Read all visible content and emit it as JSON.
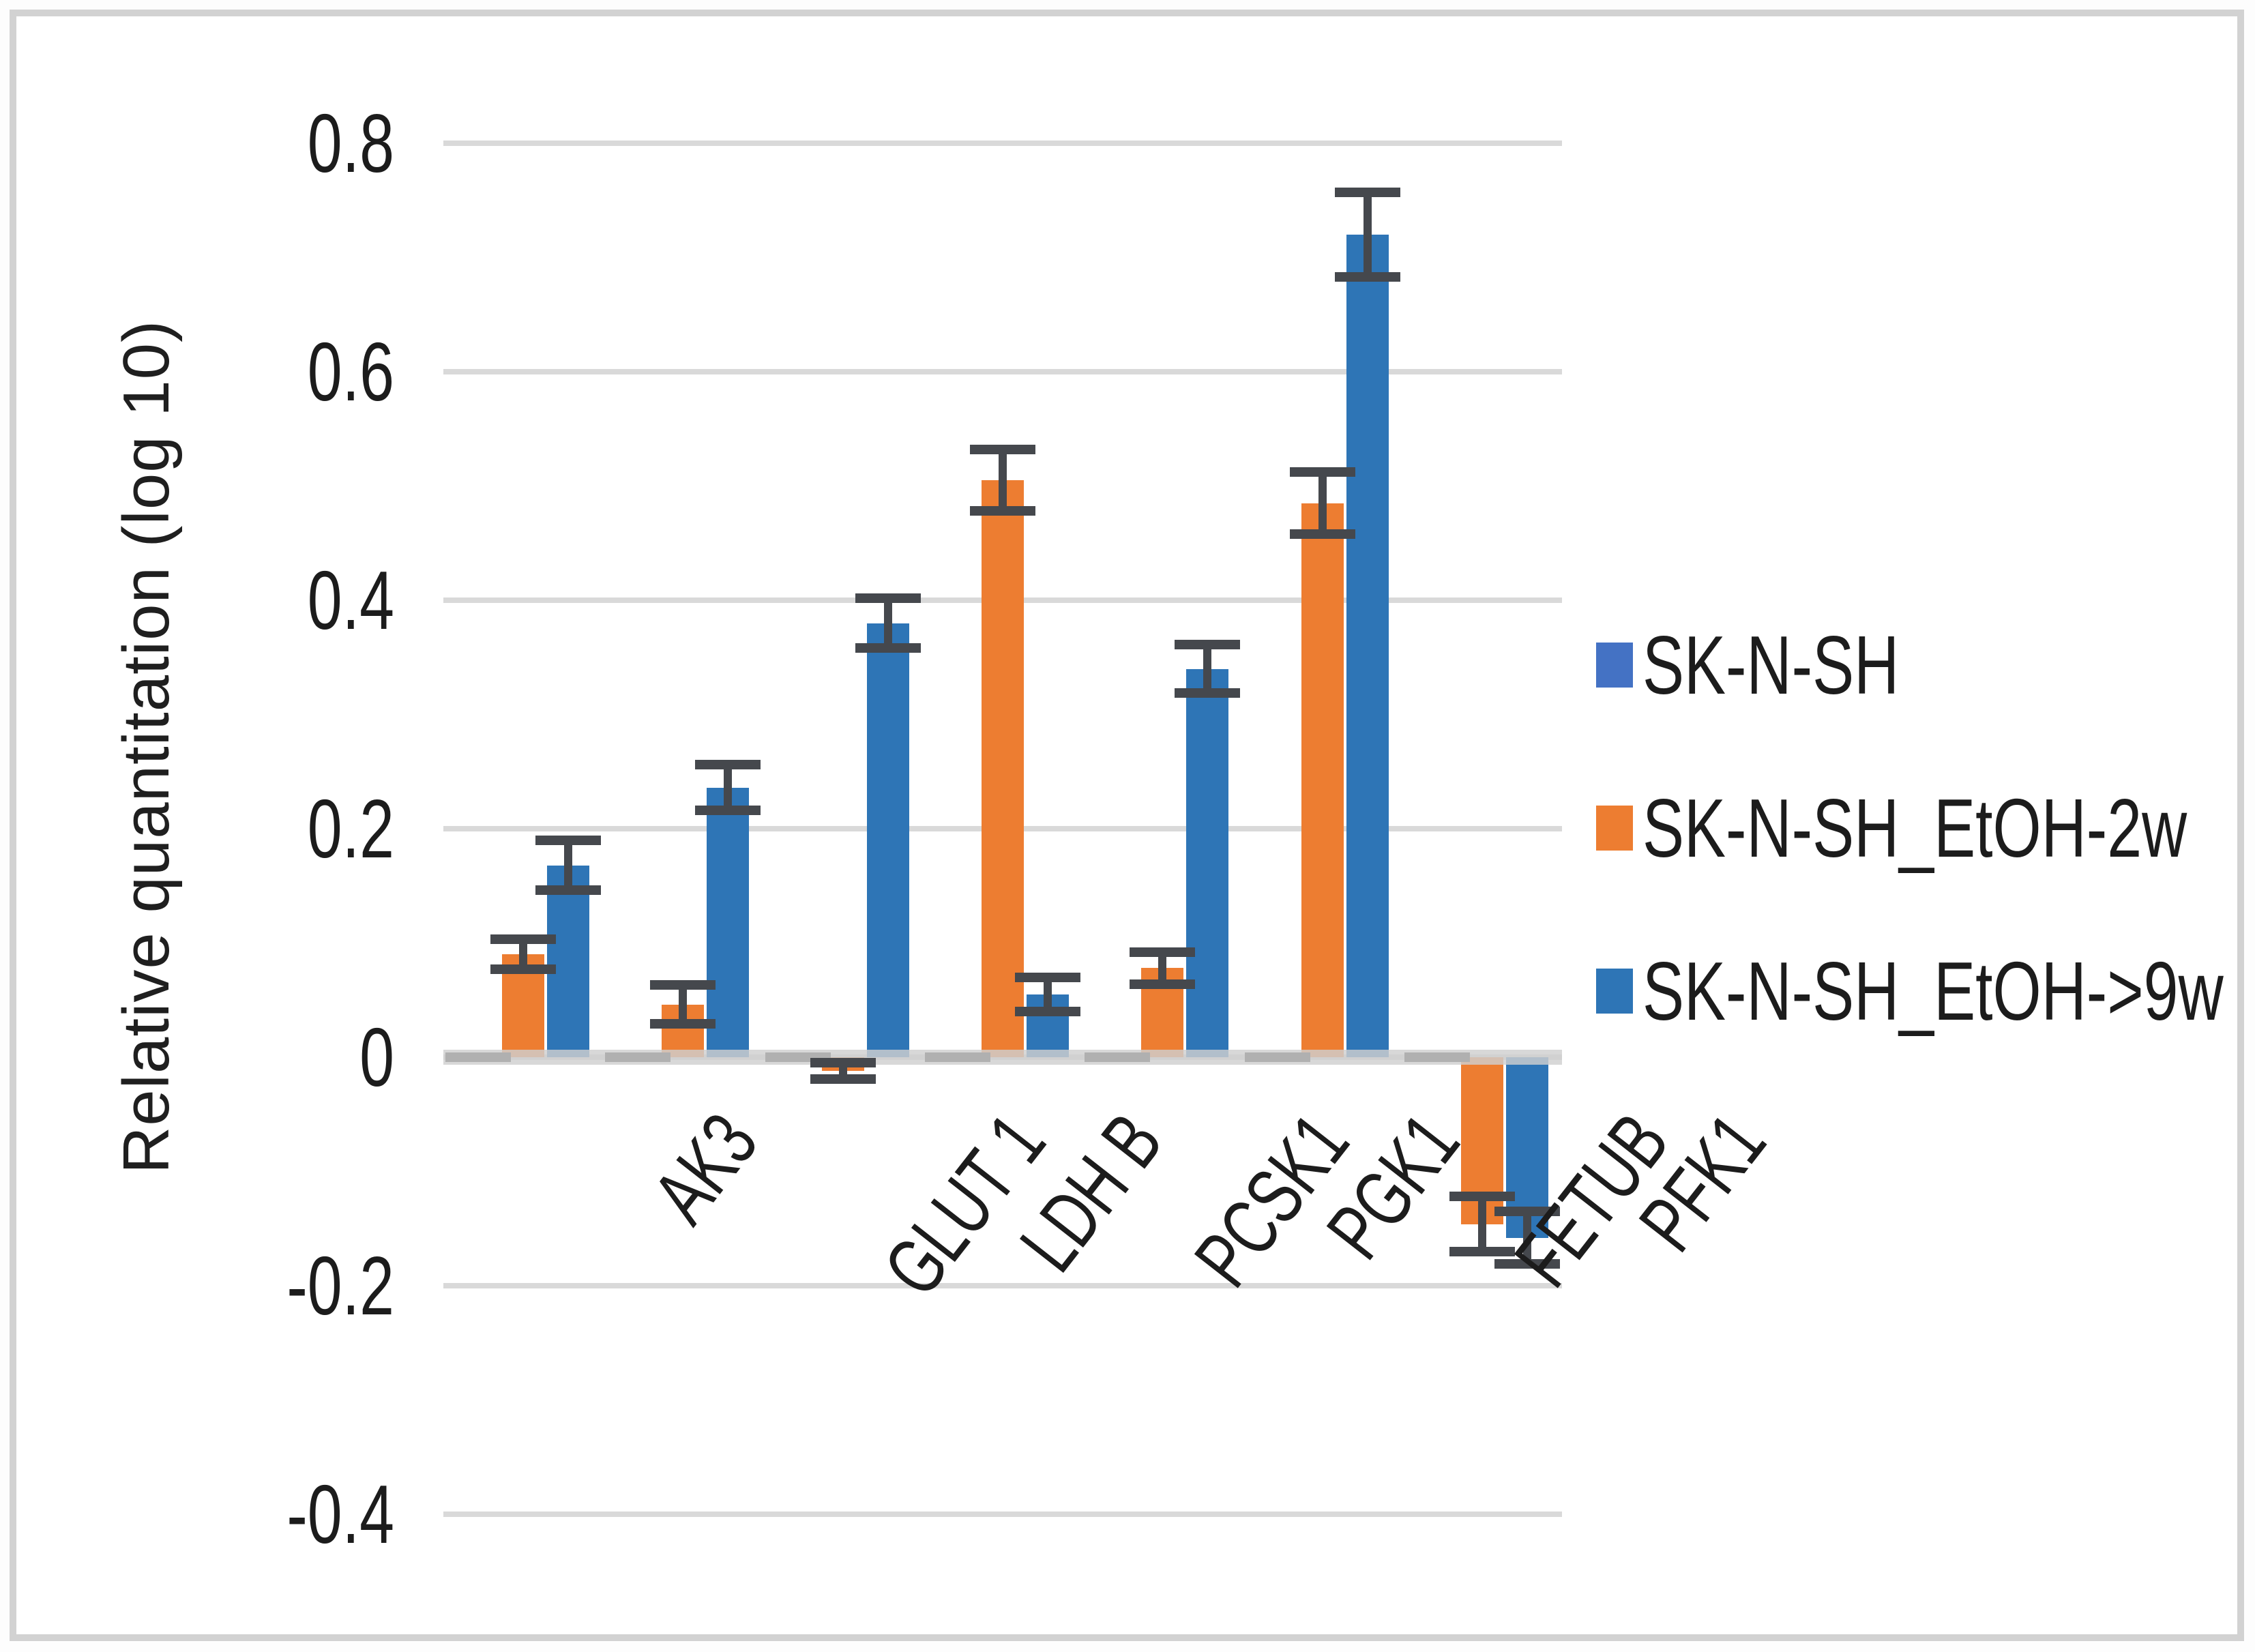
{
  "y_axis": {
    "title": "Relative quantitation (log 10)",
    "tick_labels": [
      "0.8",
      "0.6",
      "0.4",
      "0.2",
      "0",
      "-0.2",
      "-0.4"
    ],
    "tick_values": [
      0.8,
      0.6,
      0.4,
      0.2,
      0,
      -0.2,
      -0.4
    ]
  },
  "legend": {
    "position": "right",
    "entries": [
      {
        "label": "SK-N-SH",
        "color": "#4472C4"
      },
      {
        "label": "SK-N-SH_EtOH-2w",
        "color": "#ED7D31"
      },
      {
        "label": "SK-N-SH_EtOH->9w",
        "color": "#2E75B6"
      }
    ]
  },
  "chart_data": {
    "type": "bar",
    "title": "",
    "xlabel": "",
    "ylabel": "Relative quantitation (log 10)",
    "ylim": [
      -0.4,
      0.8
    ],
    "grid": true,
    "legend_position": "right",
    "categories": [
      "AK3",
      "GLUT 1",
      "LDH B",
      "PCSK1",
      "PGK1",
      "FETUB",
      "PFK1"
    ],
    "series": [
      {
        "name": "SK-N-SH",
        "color": "#4472C4",
        "values": [
          0,
          0,
          0,
          0,
          0,
          0,
          0
        ],
        "errors": [
          0,
          0,
          0,
          0,
          0,
          0,
          0
        ]
      },
      {
        "name": "SK-N-SH_EtOH-2w",
        "color": "#ED7D31",
        "values": [
          0.09,
          0.046,
          -0.012,
          0.505,
          0.078,
          0.485,
          -0.146
        ],
        "errors": [
          0.013,
          0.017,
          0.007,
          0.027,
          0.014,
          0.027,
          0.024
        ]
      },
      {
        "name": "SK-N-SH_EtOH->9w",
        "color": "#2E75B6",
        "values": [
          0.168,
          0.236,
          0.38,
          0.055,
          0.34,
          0.72,
          -0.158
        ],
        "errors": [
          0.022,
          0.02,
          0.022,
          0.015,
          0.021,
          0.037,
          0.023
        ]
      }
    ]
  },
  "colors": {
    "gridline": "#d9d9d9",
    "zero_axis": "#d0d0d0",
    "error_bar": "#45484d",
    "text": "#1c1c1c",
    "frame_border": "#d2d2d2"
  }
}
